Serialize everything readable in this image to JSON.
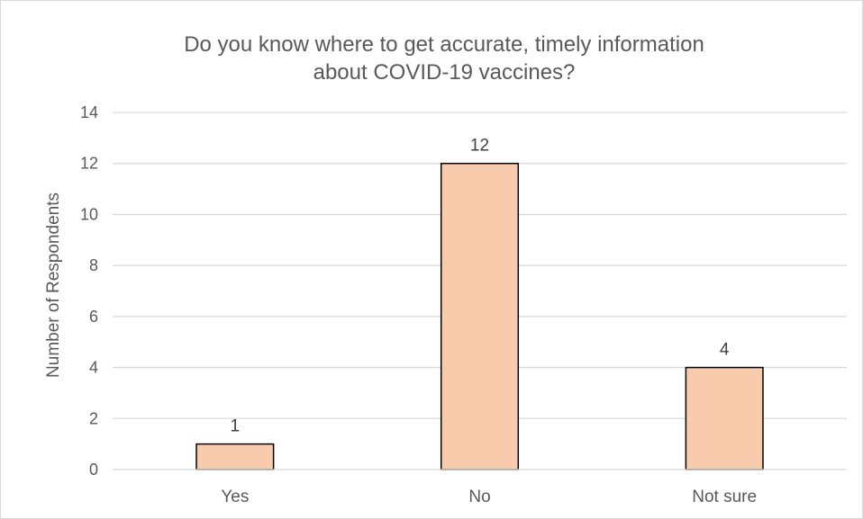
{
  "chart_data": {
    "type": "bar",
    "title_lines": [
      "Do you know where to get accurate, timely information",
      "about COVID-19 vaccines?"
    ],
    "ylabel": "Number of Respondents",
    "categories": [
      "Yes",
      "No",
      "Not sure"
    ],
    "values": [
      1,
      12,
      4
    ],
    "yticks": [
      "0",
      "2",
      "4",
      "6",
      "8",
      "10",
      "12",
      "14"
    ],
    "ylim": [
      0,
      14
    ],
    "grid": true,
    "legend": "none",
    "bar_color": "#f8cbad",
    "bar_edge": "#000000",
    "grid_color": "#d9d9d9"
  }
}
